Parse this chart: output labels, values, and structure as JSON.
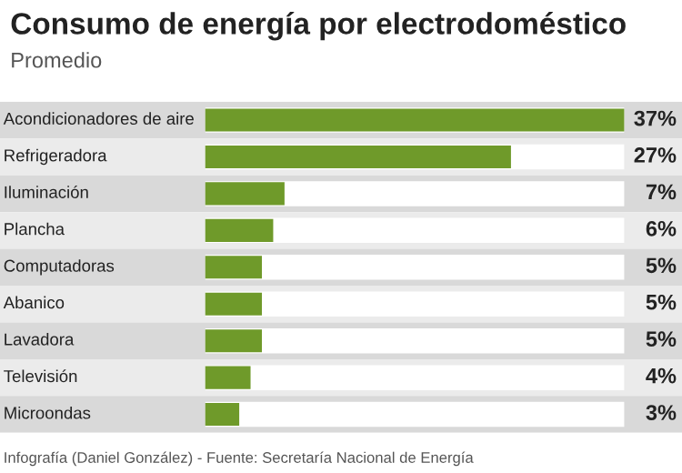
{
  "chart_data": {
    "type": "bar",
    "orientation": "horizontal",
    "title": "Consumo de energía por electrodoméstico",
    "subtitle": "Promedio",
    "categories": [
      "Acondicionadores de aire",
      "Refrigeradora",
      "Iluminación",
      "Plancha",
      "Computadoras",
      "Abanico",
      "Lavadora",
      "Televisión",
      "Microondas"
    ],
    "values": [
      37,
      27,
      7,
      6,
      5,
      5,
      5,
      4,
      3
    ],
    "value_labels": [
      "37%",
      "27%",
      "7%",
      "6%",
      "5%",
      "5%",
      "5%",
      "4%",
      "3%"
    ],
    "color": "#6f9a2a",
    "annotations": [
      "Infografía (Daniel González) - Fuente: Secretaría Nacional de Energía"
    ]
  }
}
